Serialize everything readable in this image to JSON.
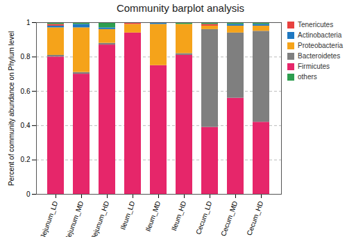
{
  "chart_data": {
    "type": "bar",
    "title": "Community barplot analysis",
    "y_label": "Percent of community abundance on Phylum level",
    "stacked": true,
    "grid": true,
    "legend": "right",
    "categories": [
      "Jejunum_LD",
      "Jejunum_MD",
      "Jejunum_HD",
      "Ileum_LD",
      "Ileum_MD",
      "Ileum_HD",
      "Cecum_LD",
      "Cecum_MD",
      "Cecum_HD"
    ],
    "ylim": [
      0,
      1
    ],
    "yticks": [
      0,
      0.2,
      0.4,
      0.6,
      0.8,
      1
    ],
    "series": [
      {
        "name": "Firmicutes",
        "color": "#e6266a",
        "values": [
          0.8,
          0.7,
          0.87,
          0.94,
          0.75,
          0.81,
          0.39,
          0.56,
          0.42
        ]
      },
      {
        "name": "Bacteroidetes",
        "color": "#7f7f7f",
        "values": [
          0.01,
          0.01,
          0.01,
          0.0,
          0.0,
          0.01,
          0.57,
          0.38,
          0.53
        ]
      },
      {
        "name": "Proteobacteria",
        "color": "#f5a31a",
        "values": [
          0.16,
          0.26,
          0.08,
          0.05,
          0.24,
          0.17,
          0.02,
          0.04,
          0.03
        ]
      },
      {
        "name": "Actinobacteria",
        "color": "#1f78c1",
        "values": [
          0.01,
          0.02,
          0.01,
          0.0,
          0.01,
          0.0,
          0.0,
          0.01,
          0.01
        ]
      },
      {
        "name": "Tenericutes",
        "color": "#e8423f",
        "values": [
          0.01,
          0.0,
          0.0,
          0.01,
          0.0,
          0.0,
          0.01,
          0.0,
          0.0
        ]
      },
      {
        "name": "others",
        "color": "#2e9e4f",
        "values": [
          0.01,
          0.01,
          0.03,
          0.0,
          0.0,
          0.01,
          0.01,
          0.01,
          0.01
        ]
      }
    ],
    "legend_order": [
      "Tenericutes",
      "Actinobacteria",
      "Proteobacteria",
      "Bacteroidetes",
      "Firmicutes",
      "others"
    ]
  }
}
